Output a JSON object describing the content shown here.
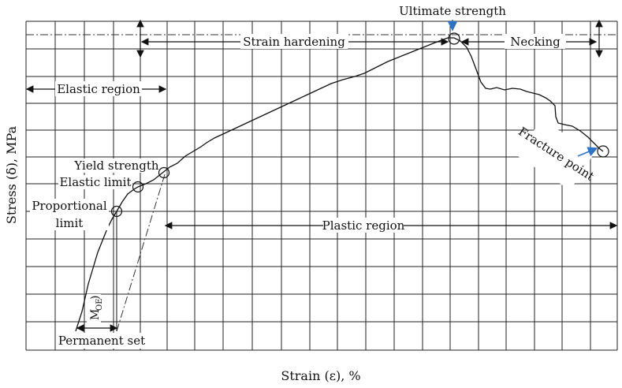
{
  "diagram": {
    "y_axis_label": "Stress (δ), MPa",
    "x_axis_label": "Strain (ε), %",
    "labels": {
      "ultimate_strength": "Ultimate strength",
      "strain_hardening": "Strain hardening",
      "necking": "Necking",
      "elastic_region": "Elastic region",
      "yield_strength": "Yield strength",
      "elastic_limit": "Elastic limit",
      "proportional_1": "Proportional",
      "proportional_2": "limit",
      "plastic_region": "Plastic region",
      "fracture_point": "Fracture point",
      "permanent_set": "Permanent set",
      "m_oe": "M",
      "m_oe_sub": "OE"
    },
    "colors": {
      "line": "#111111",
      "accent_arrow": "#2f73c6"
    }
  }
}
